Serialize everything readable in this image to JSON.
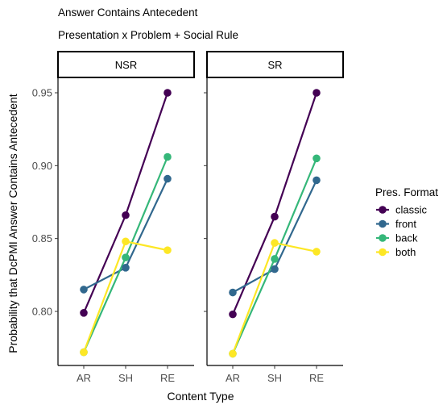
{
  "titles": {
    "title": "Answer Contains Antecedent",
    "subtitle": "Presentation x Problem + Social Rule"
  },
  "chart_data": {
    "type": "line",
    "title": "Answer Contains Antecedent",
    "subtitle": "Presentation x Problem + Social Rule",
    "xlabel": "Content Type",
    "ylabel": "Probability that DcPMI Answer Contains Antecedent",
    "categories": [
      "AR",
      "SH",
      "RE"
    ],
    "ylim": [
      0.765,
      0.958
    ],
    "yticks": [
      0.8,
      0.85,
      0.9,
      0.95
    ],
    "ytick_labels": [
      "0.80",
      "0.85",
      "0.90",
      "0.95"
    ],
    "grid": false,
    "legend": {
      "title": "Pres. Format",
      "placement": "right"
    },
    "facets": [
      {
        "label": "NSR",
        "series": [
          {
            "name": "classic",
            "color": "#440154",
            "values": [
              0.799,
              0.866,
              0.95
            ]
          },
          {
            "name": "front",
            "color": "#31688e",
            "values": [
              0.815,
              0.83,
              0.891
            ]
          },
          {
            "name": "back",
            "color": "#35b779",
            "values": [
              0.772,
              0.837,
              0.906
            ]
          },
          {
            "name": "both",
            "color": "#fde725",
            "values": [
              0.772,
              0.848,
              0.842
            ]
          }
        ]
      },
      {
        "label": "SR",
        "series": [
          {
            "name": "classic",
            "color": "#440154",
            "values": [
              0.798,
              0.865,
              0.95
            ]
          },
          {
            "name": "front",
            "color": "#31688e",
            "values": [
              0.813,
              0.829,
              0.89
            ]
          },
          {
            "name": "back",
            "color": "#35b779",
            "values": [
              0.771,
              0.836,
              0.905
            ]
          },
          {
            "name": "both",
            "color": "#fde725",
            "values": [
              0.771,
              0.847,
              0.841
            ]
          }
        ]
      }
    ]
  }
}
